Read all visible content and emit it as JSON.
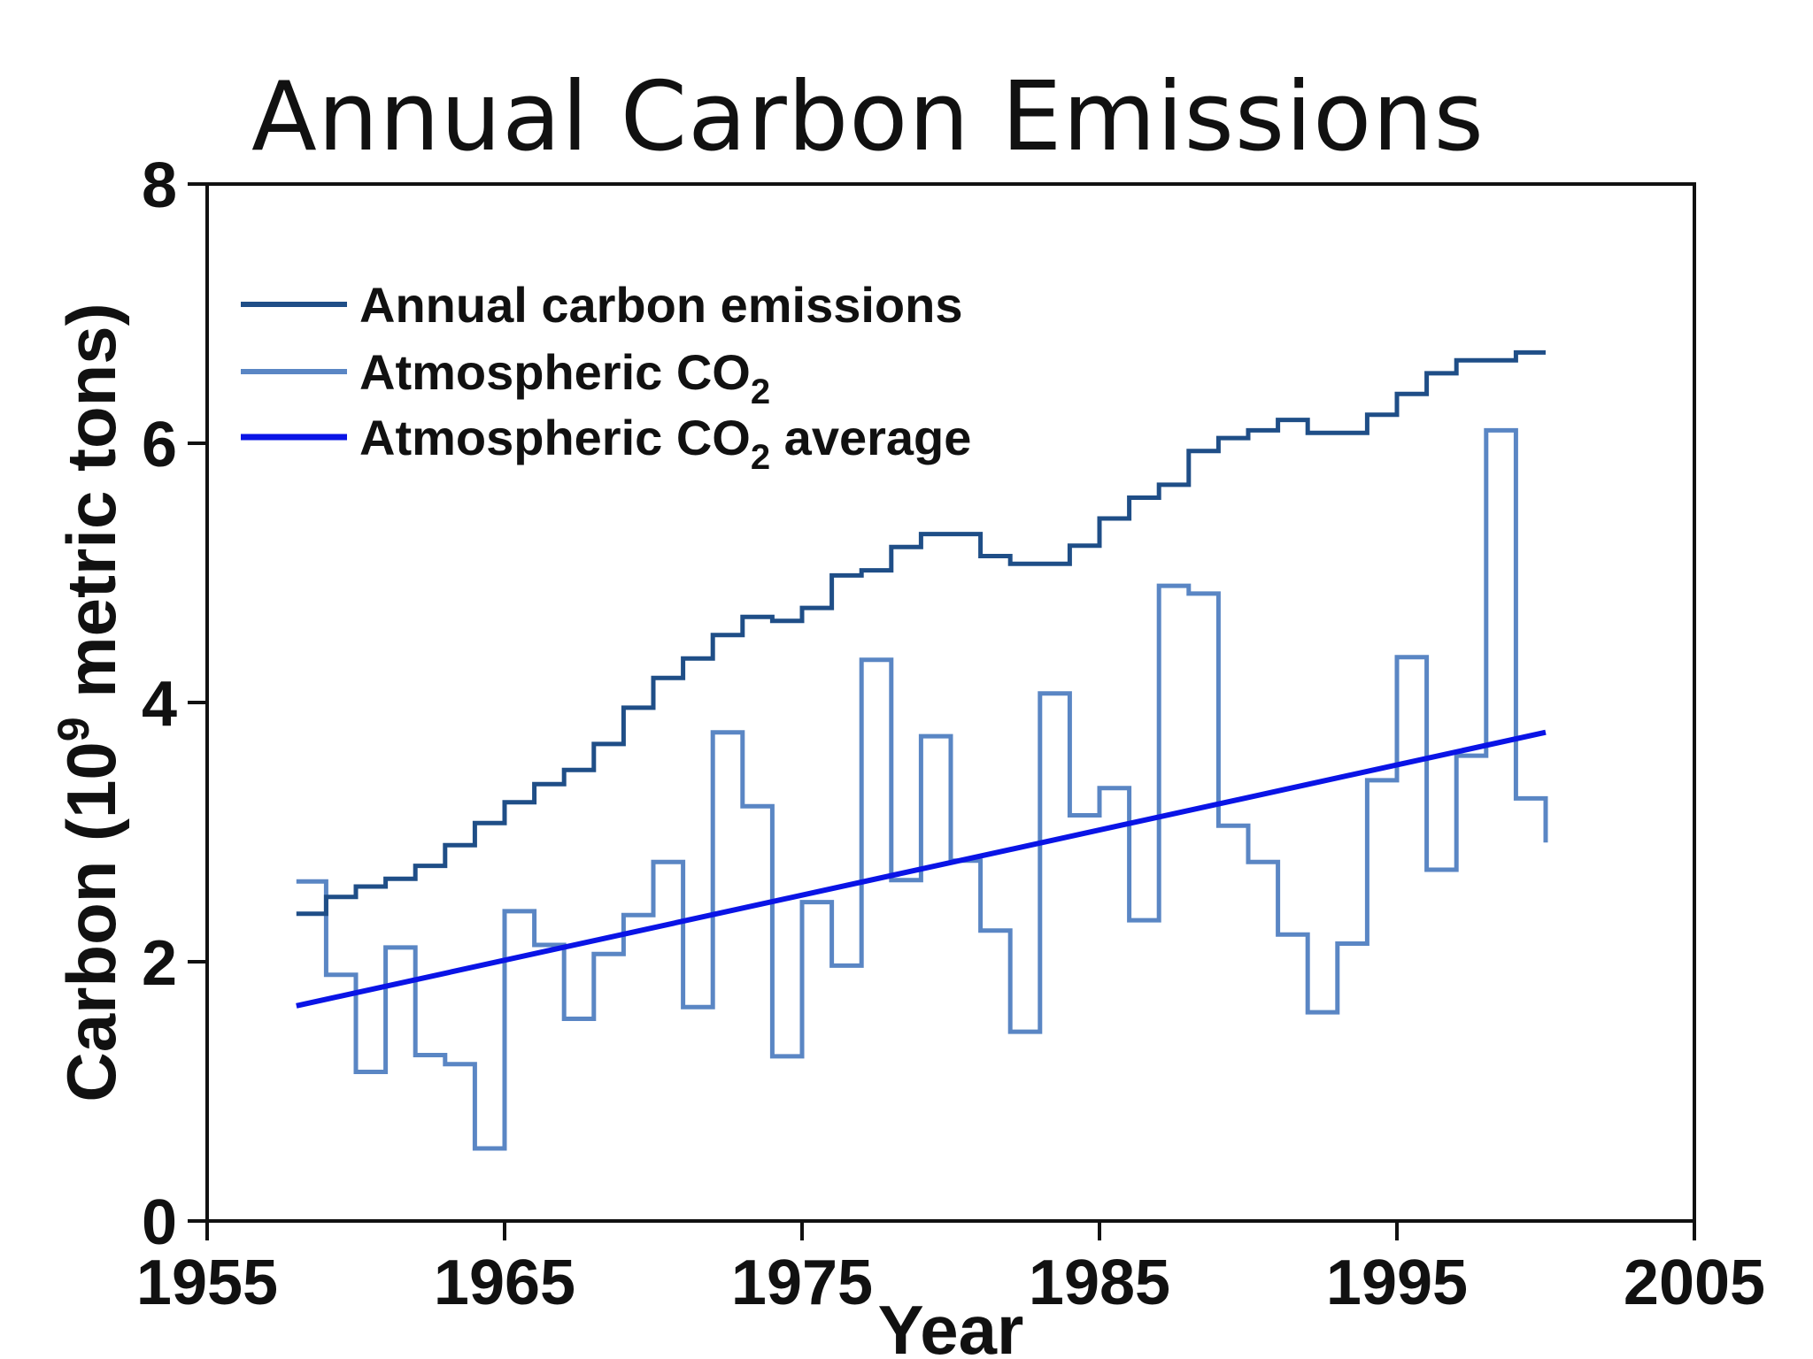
{
  "chart_data": {
    "type": "line",
    "title": "Annual Carbon Emissions",
    "xlabel": "Year",
    "ylabel": {
      "prefix": "Carbon (10",
      "superscript": "9",
      "suffix": " metric tons)"
    },
    "xlim": [
      1955,
      2005
    ],
    "ylim": [
      0,
      8
    ],
    "x_ticks": [
      1955,
      1965,
      1975,
      1985,
      1995,
      2005
    ],
    "y_ticks": [
      0,
      2,
      4,
      6,
      8
    ],
    "grid": false,
    "legend_position": "top-left",
    "legend": [
      {
        "parts": [
          {
            "text": "Annual carbon emissions"
          }
        ],
        "color": "#1f4e87"
      },
      {
        "parts": [
          {
            "text": "Atmospheric CO"
          },
          {
            "text": "2",
            "sub": true
          }
        ],
        "color": "#5a86c4"
      },
      {
        "parts": [
          {
            "text": "Atmospheric CO"
          },
          {
            "text": "2",
            "sub": true
          },
          {
            "text": " average"
          }
        ],
        "color": "#0a14e6"
      }
    ],
    "series": [
      {
        "key": "emissions",
        "style": "step",
        "color": "#1f4e87",
        "x": [
          1958,
          1959,
          1960,
          1961,
          1962,
          1963,
          1964,
          1965,
          1966,
          1967,
          1968,
          1969,
          1970,
          1971,
          1972,
          1973,
          1974,
          1975,
          1976,
          1977,
          1978,
          1979,
          1980,
          1981,
          1982,
          1983,
          1984,
          1985,
          1986,
          1987,
          1988,
          1989,
          1990,
          1991,
          1992,
          1993,
          1994,
          1995,
          1996,
          1997,
          1998,
          1999,
          2000
        ],
        "y": [
          2.37,
          2.5,
          2.58,
          2.64,
          2.74,
          2.9,
          3.07,
          3.23,
          3.37,
          3.48,
          3.68,
          3.96,
          4.19,
          4.34,
          4.52,
          4.66,
          4.63,
          4.73,
          4.98,
          5.02,
          5.2,
          5.3,
          5.3,
          5.13,
          5.07,
          5.07,
          5.21,
          5.42,
          5.58,
          5.68,
          5.94,
          6.04,
          6.1,
          6.18,
          6.08,
          6.08,
          6.22,
          6.38,
          6.54,
          6.64,
          6.64,
          6.7,
          6.7
        ]
      },
      {
        "key": "co2",
        "style": "step",
        "color": "#5a86c4",
        "x": [
          1958,
          1959,
          1960,
          1961,
          1962,
          1963,
          1964,
          1965,
          1966,
          1967,
          1968,
          1969,
          1970,
          1971,
          1972,
          1973,
          1974,
          1975,
          1976,
          1977,
          1978,
          1979,
          1980,
          1981,
          1982,
          1983,
          1984,
          1985,
          1986,
          1987,
          1988,
          1989,
          1990,
          1991,
          1992,
          1993,
          1994,
          1995,
          1996,
          1997,
          1998,
          1999,
          2000
        ],
        "y": [
          2.62,
          1.9,
          1.15,
          2.11,
          1.28,
          1.21,
          0.56,
          2.39,
          2.13,
          1.56,
          2.06,
          2.36,
          2.77,
          1.65,
          3.77,
          3.2,
          1.27,
          2.46,
          1.97,
          4.33,
          2.63,
          3.74,
          2.78,
          2.24,
          1.46,
          4.07,
          3.13,
          3.34,
          2.32,
          4.9,
          4.84,
          3.05,
          2.77,
          2.21,
          1.61,
          2.14,
          3.4,
          4.35,
          2.71,
          3.59,
          6.1,
          3.26,
          2.92
        ]
      },
      {
        "key": "average",
        "style": "line",
        "color": "#0a14e6",
        "x": [
          1958,
          2000
        ],
        "y": [
          1.66,
          3.77
        ]
      }
    ]
  }
}
